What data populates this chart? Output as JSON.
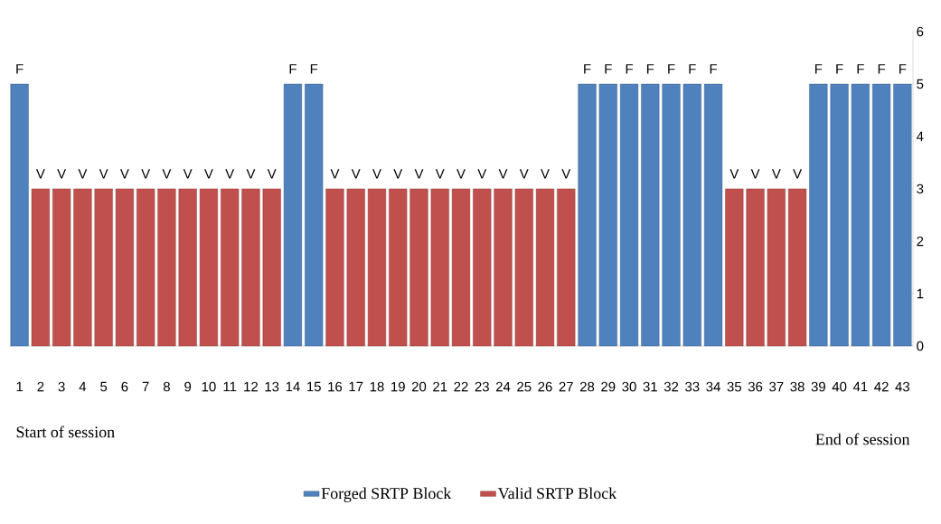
{
  "chart_data": {
    "type": "bar",
    "categories": [
      "1",
      "2",
      "3",
      "4",
      "5",
      "6",
      "7",
      "8",
      "9",
      "10",
      "11",
      "12",
      "13",
      "14",
      "15",
      "16",
      "17",
      "18",
      "19",
      "20",
      "21",
      "22",
      "23",
      "24",
      "25",
      "26",
      "27",
      "28",
      "29",
      "30",
      "31",
      "32",
      "33",
      "34",
      "35",
      "36",
      "37",
      "38",
      "39",
      "40",
      "41",
      "42",
      "43"
    ],
    "series": [
      {
        "name": "Forged SRTP Block",
        "color": "#4f81bd",
        "values": [
          5,
          null,
          null,
          null,
          null,
          null,
          null,
          null,
          null,
          null,
          null,
          null,
          null,
          5,
          5,
          null,
          null,
          null,
          null,
          null,
          null,
          null,
          null,
          null,
          null,
          null,
          null,
          5,
          5,
          5,
          5,
          5,
          5,
          5,
          null,
          null,
          null,
          null,
          5,
          5,
          5,
          5,
          5
        ],
        "value_labels": [
          "F",
          null,
          null,
          null,
          null,
          null,
          null,
          null,
          null,
          null,
          null,
          null,
          null,
          "F",
          "F",
          null,
          null,
          null,
          null,
          null,
          null,
          null,
          null,
          null,
          null,
          null,
          null,
          "F",
          "F",
          "F",
          "F",
          "F",
          "F",
          "F",
          null,
          null,
          null,
          null,
          "F",
          "F",
          "F",
          "F",
          "F"
        ]
      },
      {
        "name": "Valid SRTP Block",
        "color": "#c0504d",
        "values": [
          null,
          3,
          3,
          3,
          3,
          3,
          3,
          3,
          3,
          3,
          3,
          3,
          3,
          null,
          null,
          3,
          3,
          3,
          3,
          3,
          3,
          3,
          3,
          3,
          3,
          3,
          3,
          null,
          null,
          null,
          null,
          null,
          null,
          null,
          3,
          3,
          3,
          3,
          null,
          null,
          null,
          null,
          null
        ],
        "value_labels": [
          null,
          "V",
          "V",
          "V",
          "V",
          "V",
          "V",
          "V",
          "V",
          "V",
          "V",
          "V",
          "V",
          null,
          null,
          "V",
          "V",
          "V",
          "V",
          "V",
          "V",
          "V",
          "V",
          "V",
          "V",
          "V",
          "V",
          null,
          null,
          null,
          null,
          null,
          null,
          null,
          "V",
          "V",
          "V",
          "V",
          null,
          null,
          null,
          null,
          null
        ]
      }
    ],
    "ylim": [
      0,
      6
    ],
    "yticks": [
      0,
      1,
      2,
      3,
      4,
      5,
      6
    ],
    "legend": "bottom",
    "annotations": [
      "Start of session",
      "End of session"
    ]
  }
}
